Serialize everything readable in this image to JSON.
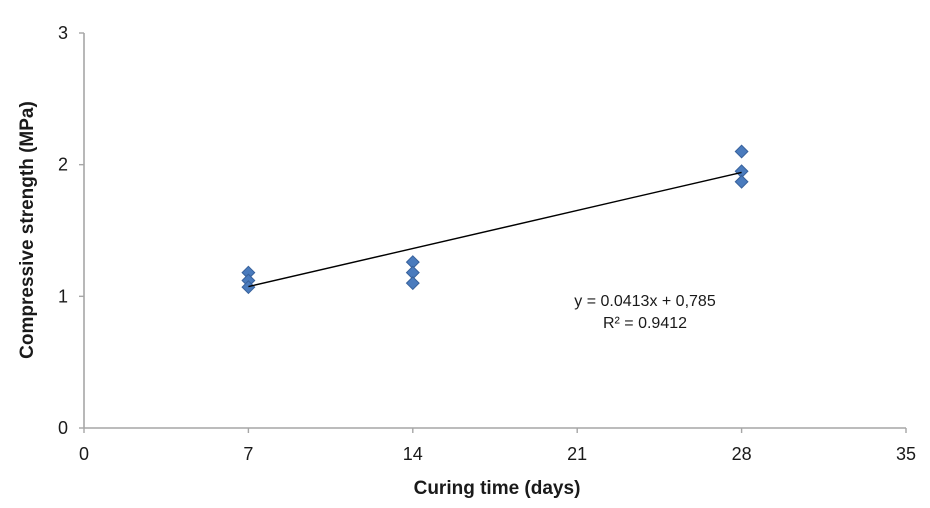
{
  "chart_data": {
    "type": "scatter",
    "title": "",
    "xlabel": "Curing time (days)",
    "ylabel": "Compressive strength (MPa)",
    "xlim": [
      0,
      35
    ],
    "ylim": [
      0,
      3
    ],
    "xticks": [
      0,
      7,
      14,
      21,
      28,
      35
    ],
    "yticks": [
      0,
      1,
      2,
      3
    ],
    "grid": false,
    "legend": false,
    "marker": "diamond",
    "series": [
      {
        "name": "Compressive strength",
        "points": [
          {
            "x": 7,
            "y": 1.18
          },
          {
            "x": 7,
            "y": 1.12
          },
          {
            "x": 7,
            "y": 1.07
          },
          {
            "x": 14,
            "y": 1.26
          },
          {
            "x": 14,
            "y": 1.18
          },
          {
            "x": 14,
            "y": 1.1
          },
          {
            "x": 28,
            "y": 2.1
          },
          {
            "x": 28,
            "y": 1.95
          },
          {
            "x": 28,
            "y": 1.87
          }
        ]
      }
    ],
    "trendline": {
      "slope": 0.0413,
      "intercept": 0.785,
      "x_range": [
        7,
        28
      ],
      "equation_label": "y = 0.0413x + 0,785",
      "r2_label": "R² = 0.9412"
    },
    "colors": {
      "marker_fill": "#4a7bbd",
      "marker_stroke": "#38619b",
      "trendline": "#000000",
      "axis": "#a6a6a6",
      "text": "#1a1a1a"
    }
  }
}
